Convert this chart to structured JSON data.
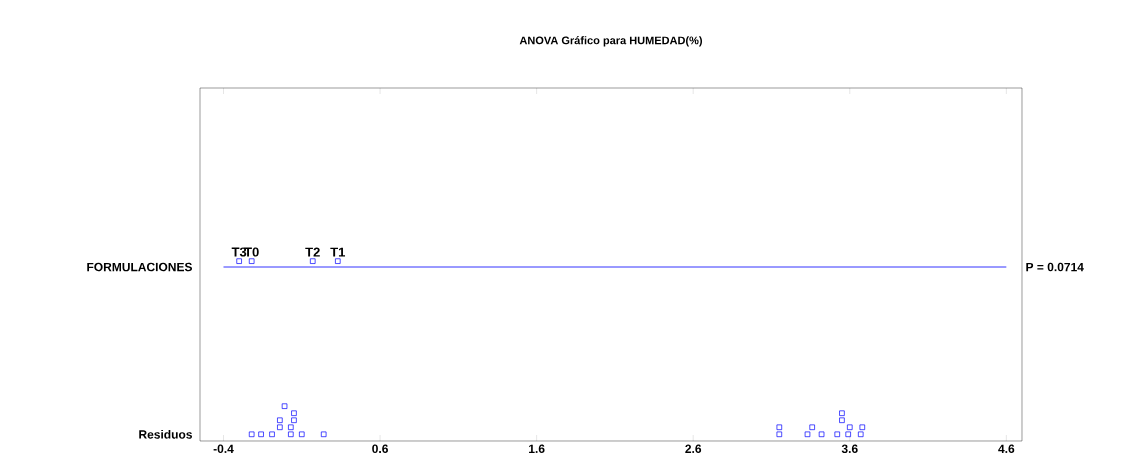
{
  "chart_data": {
    "type": "scatter",
    "orientation": "horizontal",
    "title": "ANOVA Gráfico para HUMEDAD(%)",
    "categories": [
      "FORMULACIONES",
      "Residuos"
    ],
    "series": [
      {
        "color": "#0000ff",
        "x": [
          "FORMULACIONES",
          "FORMULACIONES",
          "FORMULACIONES",
          "FORMULACIONES"
        ],
        "values": [
          -0.3,
          -0.22,
          0.17,
          0.33
        ],
        "value_labels": [
          "T3",
          "T0",
          "T2",
          "T1"
        ]
      },
      {
        "color": "#0000ff",
        "x": [
          "Residuos",
          "Residuos",
          "Residuos",
          "Residuos",
          "Residuos",
          "Residuos",
          "Residuos",
          "Residuos",
          "Residuos",
          "Residuos",
          "Residuos",
          "Residuos",
          "Residuos",
          "Residuos",
          "Residuos",
          "Residuos",
          "Residuos",
          "Residuos",
          "Residuos",
          "Residuos",
          "Residuos",
          "Residuos",
          "Residuos",
          "Residuos"
        ],
        "values": [
          -0.22,
          -0.16,
          -0.09,
          -0.04,
          0.03,
          0.1,
          0.24,
          -0.04,
          0.03,
          -0.01,
          0.05,
          0.05,
          3.15,
          3.33,
          3.42,
          3.52,
          3.59,
          3.67,
          3.15,
          3.36,
          3.55,
          3.6,
          3.68,
          3.55
        ]
      }
    ],
    "ref_lines": [
      {
        "axis": "y",
        "value": "FORMULACIONES",
        "color": "#0000ff"
      }
    ],
    "annotations": [
      "P = 0.0714"
    ],
    "xlim": [
      -0.55,
      4.7
    ],
    "xticks": [
      -0.4,
      0.6,
      1.6,
      2.6,
      3.6,
      4.6
    ],
    "marker": "square",
    "grid": false
  }
}
